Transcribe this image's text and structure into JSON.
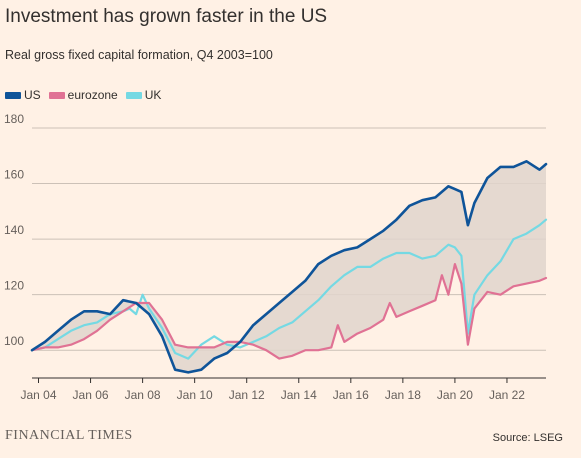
{
  "header": {
    "title": "Investment has grown faster in the US",
    "subtitle": "Real gross fixed capital formation, Q4 2003=100"
  },
  "footer": {
    "brand": "FINANCIAL TIMES",
    "source": "Source: LSEG"
  },
  "colors": {
    "background": "#fff1e5",
    "us": "#0f5499",
    "eurozone": "#e07294",
    "uk": "#75d9e3",
    "fill": "#e0d5cc",
    "grid": "#ccc1b7"
  },
  "chart_data": {
    "type": "line",
    "title": "Investment has grown faster in the US",
    "subtitle": "Real gross fixed capital formation, Q4 2003=100",
    "legend_position": "top-left",
    "grid": true,
    "xlim": [
      2003.75,
      2023.5
    ],
    "ylim": [
      90,
      180
    ],
    "y_ticks": [
      100,
      120,
      140,
      160,
      180
    ],
    "x_ticks": [
      {
        "label": "Jan 04",
        "value": 2004
      },
      {
        "label": "Jan 06",
        "value": 2006
      },
      {
        "label": "Jan 08",
        "value": 2008
      },
      {
        "label": "Jan 10",
        "value": 2010
      },
      {
        "label": "Jan 12",
        "value": 2012
      },
      {
        "label": "Jan 14",
        "value": 2014
      },
      {
        "label": "Jan 16",
        "value": 2016
      },
      {
        "label": "Jan 18",
        "value": 2018
      },
      {
        "label": "Jan 20",
        "value": 2020
      },
      {
        "label": "Jan 22",
        "value": 2022
      }
    ],
    "shaded_region": "between US and eurozone",
    "series": [
      {
        "name": "US",
        "color": "#0f5499",
        "x": [
          2003.75,
          2004.25,
          2004.75,
          2005.25,
          2005.75,
          2006.25,
          2006.75,
          2007.25,
          2007.75,
          2008.25,
          2008.75,
          2009.25,
          2009.75,
          2010.25,
          2010.75,
          2011.25,
          2011.75,
          2012.25,
          2012.75,
          2013.25,
          2013.75,
          2014.25,
          2014.75,
          2015.25,
          2015.75,
          2016.25,
          2016.75,
          2017.25,
          2017.75,
          2018.25,
          2018.75,
          2019.25,
          2019.75,
          2020.0,
          2020.25,
          2020.5,
          2020.75,
          2021.25,
          2021.75,
          2022.25,
          2022.75,
          2023.25,
          2023.5
        ],
        "y": [
          100,
          103,
          107,
          111,
          114,
          114,
          113,
          118,
          117,
          113,
          105,
          93,
          92,
          93,
          97,
          99,
          103,
          109,
          113,
          117,
          121,
          125,
          131,
          134,
          136,
          137,
          140,
          143,
          147,
          152,
          154,
          155,
          159,
          158,
          157,
          145,
          153,
          162,
          166,
          166,
          168,
          165,
          167
        ]
      },
      {
        "name": "eurozone",
        "color": "#e07294",
        "x": [
          2003.75,
          2004.25,
          2004.75,
          2005.25,
          2005.75,
          2006.25,
          2006.75,
          2007.25,
          2007.75,
          2008.25,
          2008.75,
          2009.25,
          2009.75,
          2010.25,
          2010.75,
          2011.25,
          2011.75,
          2012.25,
          2012.75,
          2013.25,
          2013.75,
          2014.25,
          2014.75,
          2015.25,
          2015.5,
          2015.75,
          2016.25,
          2016.75,
          2017.25,
          2017.5,
          2017.75,
          2018.25,
          2018.75,
          2019.25,
          2019.5,
          2019.75,
          2020.0,
          2020.25,
          2020.5,
          2020.75,
          2021.25,
          2021.75,
          2022.25,
          2022.75,
          2023.25,
          2023.5
        ],
        "y": [
          100,
          101,
          101,
          102,
          104,
          107,
          111,
          114,
          117,
          117,
          111,
          102,
          101,
          101,
          101,
          103,
          103,
          102,
          100,
          97,
          98,
          100,
          100,
          101,
          109,
          103,
          106,
          108,
          111,
          117,
          112,
          114,
          116,
          118,
          127,
          120,
          131,
          124,
          102,
          115,
          121,
          120,
          123,
          124,
          125,
          126
        ]
      },
      {
        "name": "UK",
        "color": "#75d9e3",
        "x": [
          2003.75,
          2004.25,
          2004.75,
          2005.25,
          2005.75,
          2006.25,
          2006.75,
          2007.25,
          2007.5,
          2007.75,
          2008.0,
          2008.25,
          2008.75,
          2009.25,
          2009.75,
          2010.25,
          2010.75,
          2011.25,
          2011.75,
          2012.25,
          2012.75,
          2013.25,
          2013.75,
          2014.25,
          2014.75,
          2015.25,
          2015.75,
          2016.25,
          2016.75,
          2017.25,
          2017.75,
          2018.25,
          2018.75,
          2019.25,
          2019.75,
          2020.0,
          2020.25,
          2020.5,
          2020.75,
          2021.25,
          2021.75,
          2022.25,
          2022.75,
          2023.25,
          2023.5
        ],
        "y": [
          100,
          101,
          104,
          107,
          109,
          110,
          113,
          114,
          115,
          113,
          120,
          115,
          108,
          99,
          97,
          102,
          105,
          102,
          101,
          103,
          105,
          108,
          110,
          114,
          118,
          123,
          127,
          130,
          130,
          133,
          135,
          135,
          133,
          134,
          138,
          137,
          134,
          106,
          120,
          127,
          132,
          140,
          142,
          145,
          147
        ]
      }
    ]
  }
}
